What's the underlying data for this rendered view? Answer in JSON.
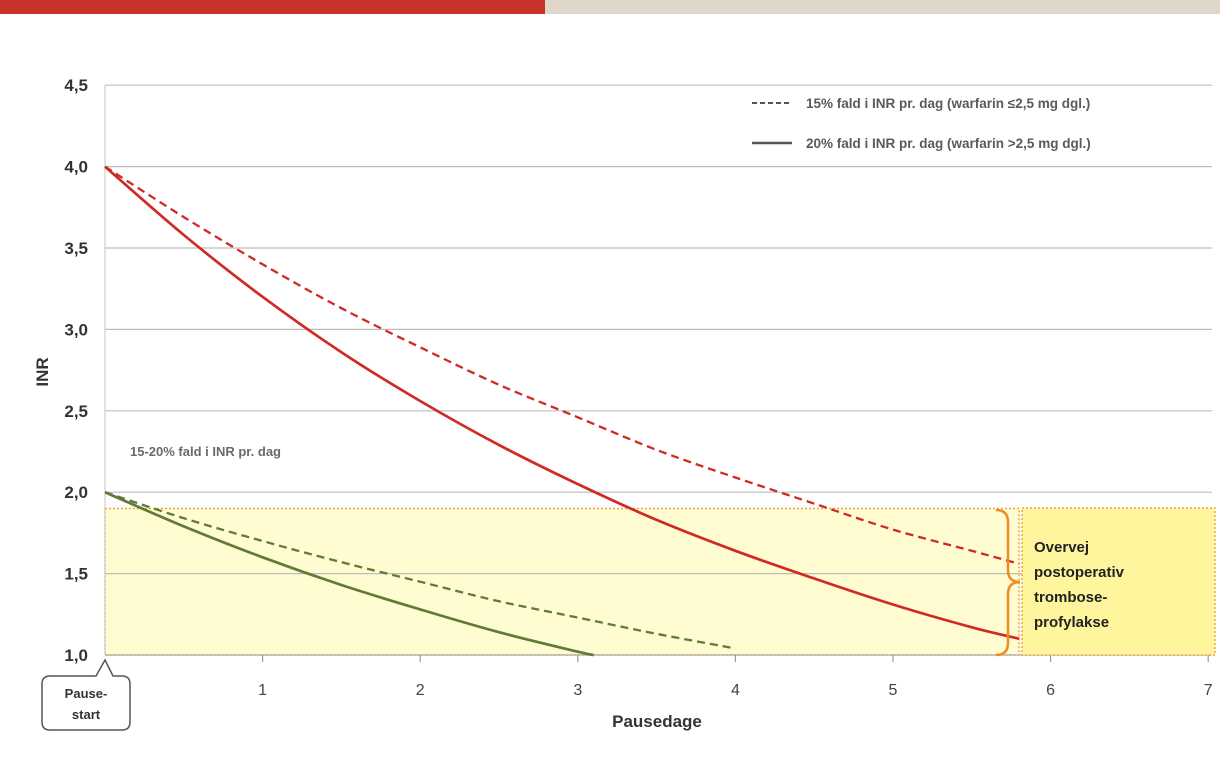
{
  "colors": {
    "top_bar_left": "#c8322a",
    "top_bar_right": "#e0d7ca",
    "highlight_border": "#f0a53a",
    "bracket": "#ef8a24",
    "gridline": "#bdbdbd"
  },
  "chart_data": {
    "type": "line",
    "xlabel": "Pausedage",
    "ylabel": "INR",
    "xlim": [
      0,
      7
    ],
    "ylim": [
      1.0,
      4.5
    ],
    "grid": "horizontal",
    "x_origin_label": [
      "Pause-",
      "start"
    ],
    "x_ticks": [
      {
        "value": 1,
        "label": "1"
      },
      {
        "value": 2,
        "label": "2"
      },
      {
        "value": 3,
        "label": "3"
      },
      {
        "value": 4,
        "label": "4"
      },
      {
        "value": 5,
        "label": "5"
      },
      {
        "value": 6,
        "label": "6"
      },
      {
        "value": 7,
        "label": "7"
      }
    ],
    "y_ticks": [
      {
        "value": 1.0,
        "label": "1,0"
      },
      {
        "value": 1.5,
        "label": "1,5"
      },
      {
        "value": 2.0,
        "label": "2,0"
      },
      {
        "value": 2.5,
        "label": "2,5"
      },
      {
        "value": 3.0,
        "label": "3,0"
      },
      {
        "value": 3.5,
        "label": "3,5"
      },
      {
        "value": 4.0,
        "label": "4,0"
      },
      {
        "value": 4.5,
        "label": "4,5"
      }
    ],
    "legend": {
      "placement": "top-right",
      "entries": [
        {
          "label": "15% fald i INR pr. dag (warfarin ≤2,5 mg dgl.)",
          "style": "dashed",
          "color": "#555555"
        },
        {
          "label": "20% fald i INR pr. dag (warfarin >2,5 mg dgl.)",
          "style": "solid",
          "color": "#555555"
        }
      ]
    },
    "series": [
      {
        "color": "#cf2b24",
        "style": "dashed",
        "x": [
          0,
          0.5,
          1,
          1.5,
          2,
          2.5,
          3,
          3.5,
          4,
          4.5,
          5,
          5.5,
          5.8
        ],
        "y": [
          4.0,
          3.69,
          3.4,
          3.13,
          2.89,
          2.66,
          2.46,
          2.26,
          2.09,
          1.93,
          1.77,
          1.64,
          1.56
        ]
      },
      {
        "color": "#cf2b24",
        "style": "solid",
        "x": [
          0,
          0.5,
          1,
          1.5,
          2,
          2.5,
          3,
          3.5,
          4,
          4.5,
          5,
          5.5,
          5.8
        ],
        "y": [
          4.0,
          3.58,
          3.2,
          2.86,
          2.56,
          2.29,
          2.05,
          1.83,
          1.64,
          1.47,
          1.31,
          1.17,
          1.1
        ]
      },
      {
        "color": "#617a35",
        "style": "dashed",
        "x": [
          0,
          0.5,
          1,
          1.5,
          2,
          2.5,
          3,
          3.5,
          4
        ],
        "y": [
          2.0,
          1.84,
          1.7,
          1.57,
          1.45,
          1.33,
          1.23,
          1.13,
          1.04
        ]
      },
      {
        "color": "#617a35",
        "style": "solid",
        "x": [
          0,
          0.5,
          1,
          1.5,
          2,
          2.5,
          3,
          3.1
        ],
        "y": [
          2.0,
          1.79,
          1.6,
          1.43,
          1.28,
          1.14,
          1.02,
          1.0
        ]
      }
    ],
    "annotations": [
      {
        "text": "15-20% fald i INR pr. dag"
      }
    ],
    "highlight_band": {
      "x": [
        0,
        5.8
      ],
      "y": [
        1.0,
        1.9
      ],
      "color": "#fffcd2"
    },
    "callout": {
      "lines": [
        "Overvej",
        "postoperativ",
        "trombose-",
        "profylakse"
      ],
      "color": "#fff59d"
    }
  }
}
